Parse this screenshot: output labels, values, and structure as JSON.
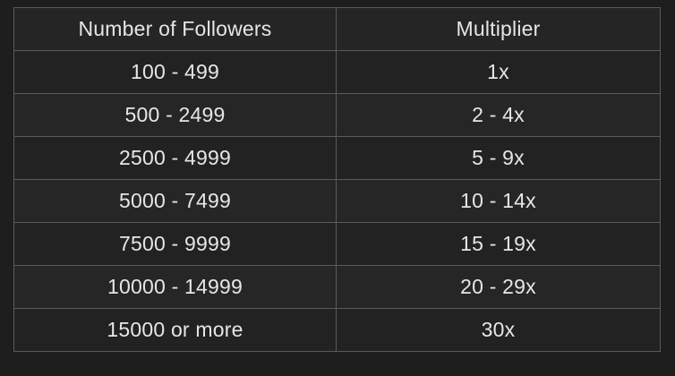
{
  "table": {
    "headers": [
      "Number of Followers",
      "Multiplier"
    ],
    "rows": [
      [
        "100 - 499",
        "1x"
      ],
      [
        "500 - 2499",
        "2 - 4x"
      ],
      [
        "2500 - 4999",
        "5 - 9x"
      ],
      [
        "5000 - 7499",
        "10 - 14x"
      ],
      [
        "7500 - 9999",
        "15 - 19x"
      ],
      [
        "10000 - 14999",
        "20 - 29x"
      ],
      [
        "15000 or more",
        "30x"
      ]
    ]
  },
  "colors": {
    "background": "#1e1e1e",
    "border": "#5a5a5a",
    "text": "#e6e6e6"
  }
}
